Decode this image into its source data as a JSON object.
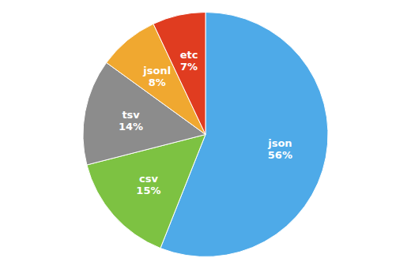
{
  "chart_data": {
    "type": "pie",
    "categories": [
      "json",
      "csv",
      "tsv",
      "jsonl",
      "etc"
    ],
    "values": [
      56,
      15,
      14,
      8,
      7
    ],
    "value_labels": [
      "56%",
      "15%",
      "14%",
      "8%",
      "7%"
    ],
    "colors": [
      "#4EAAE8",
      "#7DC242",
      "#8C8C8C",
      "#F0A830",
      "#E03C20"
    ],
    "data_labels": true
  }
}
